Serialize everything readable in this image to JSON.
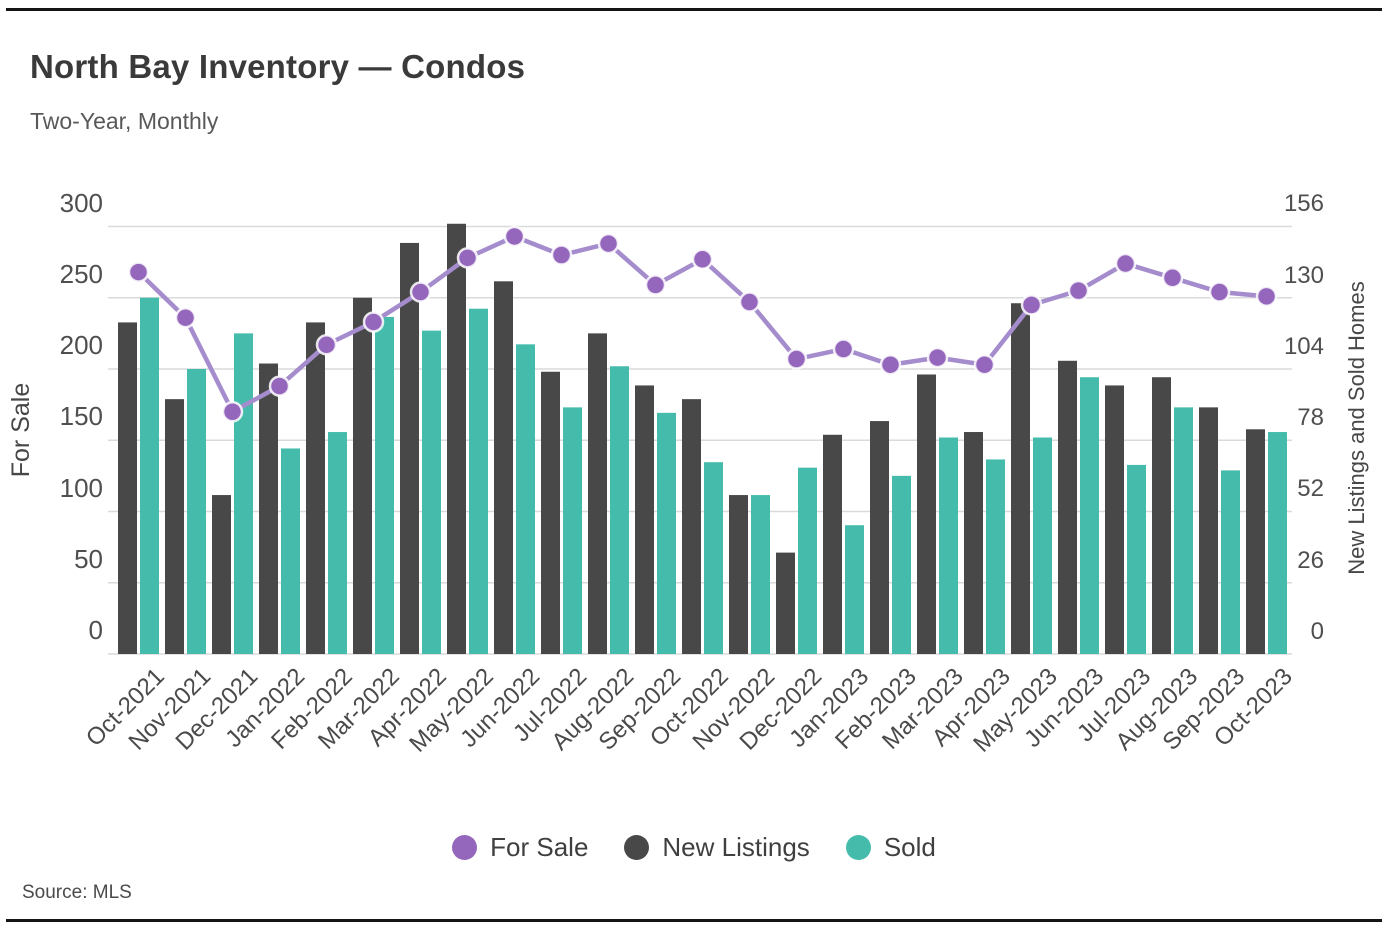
{
  "header": {
    "title": "North Bay Inventory — Condos",
    "subtitle": "Two-Year, Monthly"
  },
  "source_note": "Source: MLS",
  "colors": {
    "for_sale_marker": "#9467bd",
    "for_sale_line": "#a58ccd",
    "new_listings_bar": "#484848",
    "sold_bar": "#45bcab",
    "gridline": "#dadada",
    "rule": "#141414"
  },
  "chart_data": {
    "type": "combo",
    "categories": [
      "Oct-2021",
      "Nov-2021",
      "Dec-2021",
      "Jan-2022",
      "Feb-2022",
      "Mar-2022",
      "Apr-2022",
      "May-2022",
      "Jun-2022",
      "Jul-2022",
      "Aug-2022",
      "Sep-2022",
      "Oct-2022",
      "Nov-2022",
      "Dec-2022",
      "Jan-2023",
      "Feb-2023",
      "Mar-2023",
      "Apr-2023",
      "May-2023",
      "Jun-2023",
      "Jul-2023",
      "Aug-2023",
      "Sep-2023",
      "Oct-2023"
    ],
    "series": [
      {
        "name": "For Sale",
        "type": "line",
        "axis": "left",
        "color": "#9467bd",
        "values": [
          268,
          236,
          170,
          188,
          217,
          233,
          254,
          278,
          293,
          280,
          288,
          259,
          277,
          247,
          207,
          214,
          203,
          208,
          203,
          245,
          255,
          274,
          264,
          254,
          251
        ]
      },
      {
        "name": "New Listings",
        "type": "bar",
        "axis": "right",
        "color": "#484848",
        "values": [
          121,
          93,
          58,
          106,
          121,
          130,
          150,
          157,
          136,
          103,
          117,
          98,
          93,
          58,
          37,
          80,
          85,
          102,
          81,
          128,
          107,
          98,
          101,
          90,
          82
        ]
      },
      {
        "name": "Sold",
        "type": "bar",
        "axis": "right",
        "color": "#45bcab",
        "values": [
          130,
          104,
          117,
          75,
          81,
          123,
          118,
          126,
          113,
          90,
          105,
          88,
          70,
          58,
          68,
          47,
          65,
          79,
          71,
          79,
          101,
          69,
          90,
          67,
          81
        ]
      }
    ],
    "axes": {
      "left": {
        "label": "For Sale",
        "ticks": [
          0,
          50,
          100,
          150,
          200,
          250,
          300
        ],
        "range": [
          0,
          300
        ]
      },
      "right": {
        "label": "New Listings and Sold Homes",
        "ticks": [
          0,
          26,
          52,
          78,
          104,
          130,
          156
        ],
        "range": [
          0,
          156
        ]
      }
    },
    "legend": {
      "position": "bottom-center",
      "entries": [
        "For Sale",
        "New Listings",
        "Sold"
      ]
    },
    "grid": true
  }
}
